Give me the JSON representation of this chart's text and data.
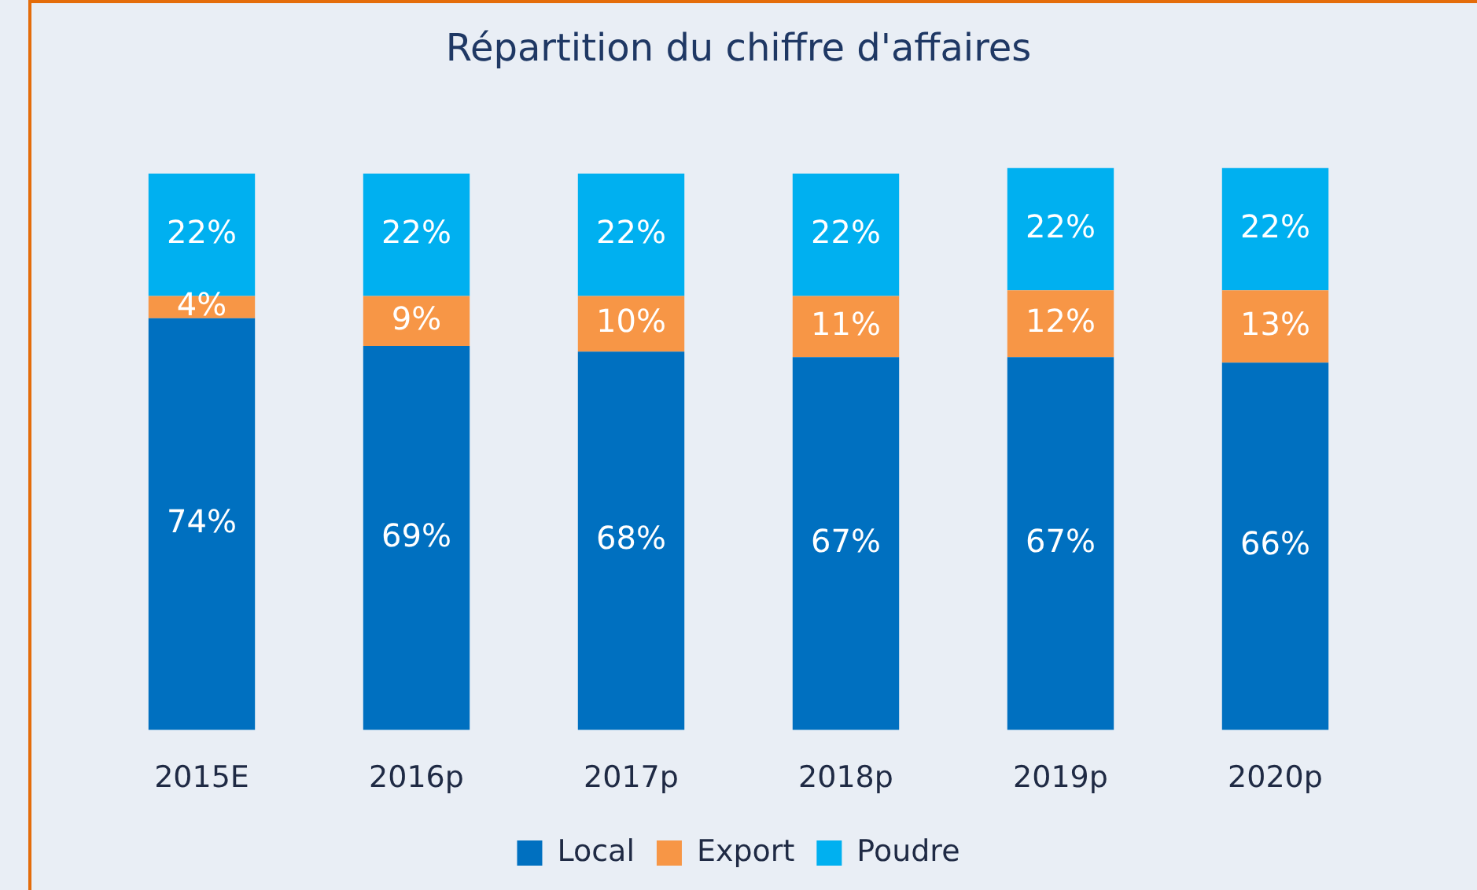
{
  "chart_data": {
    "type": "bar",
    "title": "Répartition du chiffre d'affaires",
    "categories": [
      "2015E",
      "2016p",
      "2017p",
      "2018p",
      "2019p",
      "2020p"
    ],
    "stacked": true,
    "tick_labels": "x",
    "grid": false,
    "legend": "bottom",
    "series": [
      {
        "name": "Local",
        "color": "#0070c0",
        "values": [
          74,
          69,
          68,
          67,
          67,
          66
        ],
        "value_labels": [
          "74%",
          "69%",
          "68%",
          "67%",
          "67%",
          "66%"
        ]
      },
      {
        "name": "Export",
        "color": "#f79646",
        "values": [
          4,
          9,
          10,
          11,
          12,
          13
        ],
        "value_labels": [
          "4%",
          "9%",
          "10%",
          "11%",
          "12%",
          "13%"
        ]
      },
      {
        "name": "Poudre",
        "color": "#00b0f0",
        "values": [
          22,
          22,
          22,
          22,
          22,
          22
        ],
        "value_labels": [
          "22%",
          "22%",
          "22%",
          "22%",
          "22%",
          "22%"
        ]
      }
    ]
  }
}
